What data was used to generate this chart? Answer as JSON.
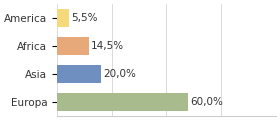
{
  "categories": [
    "America",
    "Africa",
    "Asia",
    "Europa"
  ],
  "values": [
    5.5,
    14.5,
    20.0,
    60.0
  ],
  "labels": [
    "5,5%",
    "14,5%",
    "20,0%",
    "60,0%"
  ],
  "bar_colors": [
    "#f5d97a",
    "#e8a97a",
    "#6e8fbf",
    "#a8bb8c"
  ],
  "background_color": "#ffffff",
  "xlim": [
    0,
    100
  ],
  "label_fontsize": 7.5,
  "tick_fontsize": 7.5
}
